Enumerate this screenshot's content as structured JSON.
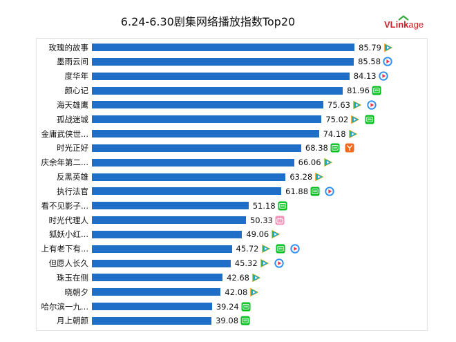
{
  "colors": {
    "bar": "#1f6ec8",
    "logo_red": "#cc1f27",
    "logo_green": "#2fa83c"
  },
  "logo": {
    "part_a": "VLink",
    "part_b": "age"
  },
  "chart_data": {
    "type": "bar",
    "orientation": "horizontal",
    "title": "6.24-6.30剧集网络播放指数Top20",
    "categories": [
      "玫瑰的故事",
      "墨雨云间",
      "度华年",
      "颜心记",
      "海天雄鹰",
      "孤战迷城",
      "金庸武侠世...",
      "时光正好",
      "庆余年第二...",
      "反黑英雄",
      "执行法官",
      "看不见影子...",
      "时光代理人",
      "狐妖小红...",
      "上有老下有...",
      "但愿人长久",
      "珠玉在侧",
      "晓朝夕",
      "哈尔滨一九...",
      "月上朝颜"
    ],
    "values": [
      85.79,
      85.58,
      84.13,
      81.96,
      75.63,
      75.02,
      74.18,
      68.38,
      66.06,
      63.28,
      61.88,
      51.18,
      50.33,
      49.06,
      45.72,
      45.32,
      42.68,
      42.08,
      39.24,
      39.08
    ],
    "platform_icons": [
      [
        "tencent-video-icon"
      ],
      [
        "youku-icon"
      ],
      [
        "youku-icon"
      ],
      [
        "iqiyi-icon"
      ],
      [
        "tencent-video-icon",
        "youku-icon"
      ],
      [
        "tencent-video-icon",
        "iqiyi-icon"
      ],
      [
        "tencent-video-icon"
      ],
      [
        "iqiyi-icon",
        "mango-tv-icon"
      ],
      [
        "tencent-video-icon"
      ],
      [
        "tencent-video-icon"
      ],
      [
        "iqiyi-icon",
        "youku-icon"
      ],
      [
        "iqiyi-icon"
      ],
      [
        "bilibili-icon"
      ],
      [
        "tencent-video-icon"
      ],
      [
        "tencent-video-icon",
        "iqiyi-icon",
        "youku-icon"
      ],
      [
        "tencent-video-icon",
        "youku-icon"
      ],
      [
        "tencent-video-icon"
      ],
      [
        "tencent-video-icon"
      ],
      [
        "iqiyi-icon"
      ],
      [
        "iqiyi-icon"
      ]
    ],
    "xlim": [
      0,
      100
    ],
    "grid": false,
    "legend": "none"
  }
}
